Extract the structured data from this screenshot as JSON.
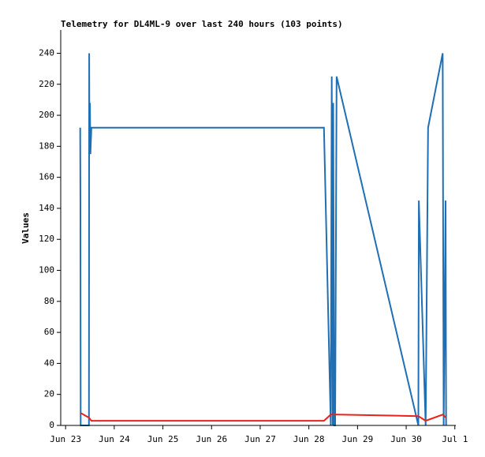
{
  "chart_data": {
    "type": "line",
    "title": "Telemetry for DL4ML-9 over last 240 hours (103 points)",
    "y_label": "Values",
    "series": [
      {
        "color": "#1f6fb4",
        "x": [
          23.3,
          23.305,
          23.31,
          23.48,
          23.485,
          23.49,
          23.5,
          23.51,
          23.53,
          28.31,
          28.45,
          28.47,
          28.49,
          28.5,
          28.52,
          28.54,
          28.57,
          30.25,
          30.26,
          30.4,
          30.45,
          30.75,
          30.77,
          30.81,
          30.82
        ],
        "values": [
          192,
          145,
          0,
          0,
          240,
          175,
          208,
          175,
          192,
          192,
          0,
          225,
          0,
          208,
          0,
          0,
          225,
          0,
          145,
          0,
          192,
          240,
          0,
          145,
          0
        ]
      },
      {
        "color": "#e8231a",
        "x": [
          23.31,
          23.48,
          23.53,
          28.31,
          28.45,
          28.6,
          30.25,
          30.4,
          30.75,
          30.82
        ],
        "values": [
          8,
          5,
          3,
          3,
          7,
          7,
          6,
          3,
          7,
          5
        ]
      }
    ],
    "xlim": [
      22.9,
      31.02
    ],
    "xticks": [
      {
        "value": 23,
        "label": "Jun 23"
      },
      {
        "value": 24,
        "label": "Jun 24"
      },
      {
        "value": 25,
        "label": "Jun 25"
      },
      {
        "value": 26,
        "label": "Jun 26"
      },
      {
        "value": 27,
        "label": "Jun 27"
      },
      {
        "value": 28,
        "label": "Jun 28"
      },
      {
        "value": 29,
        "label": "Jun 29"
      },
      {
        "value": 30,
        "label": "Jun 30"
      },
      {
        "value": 31,
        "label": "Jul 1"
      }
    ],
    "ylim": [
      0,
      255
    ],
    "yticks": [
      0,
      20,
      40,
      60,
      80,
      100,
      120,
      140,
      160,
      180,
      200,
      220,
      240
    ]
  }
}
